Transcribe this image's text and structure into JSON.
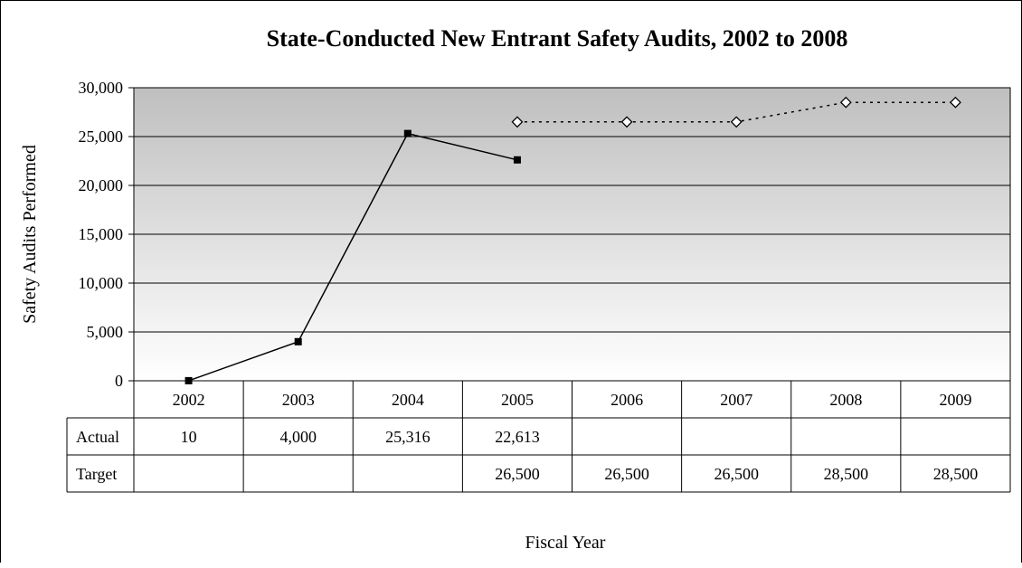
{
  "chart_data": {
    "type": "line",
    "title": "State-Conducted New Entrant Safety Audits, 2002 to 2008",
    "xlabel": "Fiscal Year",
    "ylabel": "Safety Audits Performed",
    "categories": [
      "2002",
      "2003",
      "2004",
      "2005",
      "2006",
      "2007",
      "2008",
      "2009"
    ],
    "ylim": [
      0,
      30000
    ],
    "yticks": [
      0,
      5000,
      10000,
      15000,
      20000,
      25000,
      30000
    ],
    "ytick_labels": [
      "0",
      "5,000",
      "10,000",
      "15,000",
      "20,000",
      "25,000",
      "30,000"
    ],
    "grid": "horizontal",
    "series": [
      {
        "name": "Actual",
        "marker": "square",
        "line": "solid",
        "color": "#000000",
        "values": [
          10,
          4000,
          25316,
          22613,
          null,
          null,
          null,
          null
        ],
        "labels": [
          "10",
          "4,000",
          "25,316",
          "22,613",
          "",
          "",
          "",
          ""
        ]
      },
      {
        "name": "Target",
        "marker": "diamond",
        "line": "dotted",
        "color": "#000000",
        "values": [
          null,
          null,
          null,
          26500,
          26500,
          26500,
          28500,
          28500
        ],
        "labels": [
          "",
          "",
          "",
          "26,500",
          "26,500",
          "26,500",
          "28,500",
          "28,500"
        ]
      }
    ],
    "plot_background": {
      "top": "#bfbfbf",
      "bottom": "#ffffff"
    }
  }
}
